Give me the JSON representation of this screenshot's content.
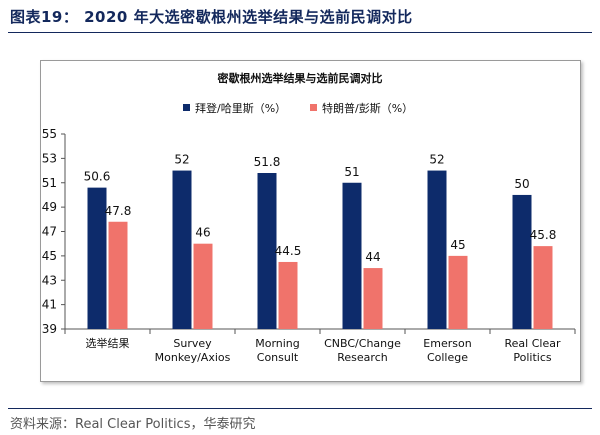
{
  "figure_title": "图表19：  2020 年大选密歇根州选举结果与选前民调对比",
  "source_note": "资料来源：Real Clear Politics，华泰研究",
  "chart_data": {
    "type": "bar",
    "title": "密歇根州选举结果与选前民调对比",
    "xlabel": "",
    "ylabel": "",
    "categories": [
      [
        "选举结果"
      ],
      [
        "Survey",
        "Monkey/Axios"
      ],
      [
        "Morning",
        "Consult"
      ],
      [
        "CNBC/Change",
        "Research"
      ],
      [
        "Emerson",
        "College"
      ],
      [
        "Real Clear",
        "Politics"
      ]
    ],
    "series": [
      {
        "name": "拜登/哈里斯（%）",
        "color": "#0d2b6b",
        "values": [
          50.6,
          52,
          51.8,
          51,
          52,
          50
        ]
      },
      {
        "name": "特朗普/彭斯（%）",
        "color": "#f0736b",
        "values": [
          47.8,
          46,
          44.5,
          44,
          45,
          45.8
        ]
      }
    ],
    "ylim": [
      39,
      55
    ],
    "yticks": [
      39,
      41,
      43,
      45,
      47,
      49,
      51,
      53,
      55
    ],
    "grid": false,
    "legend_position": "top-center",
    "data_labels": true
  }
}
